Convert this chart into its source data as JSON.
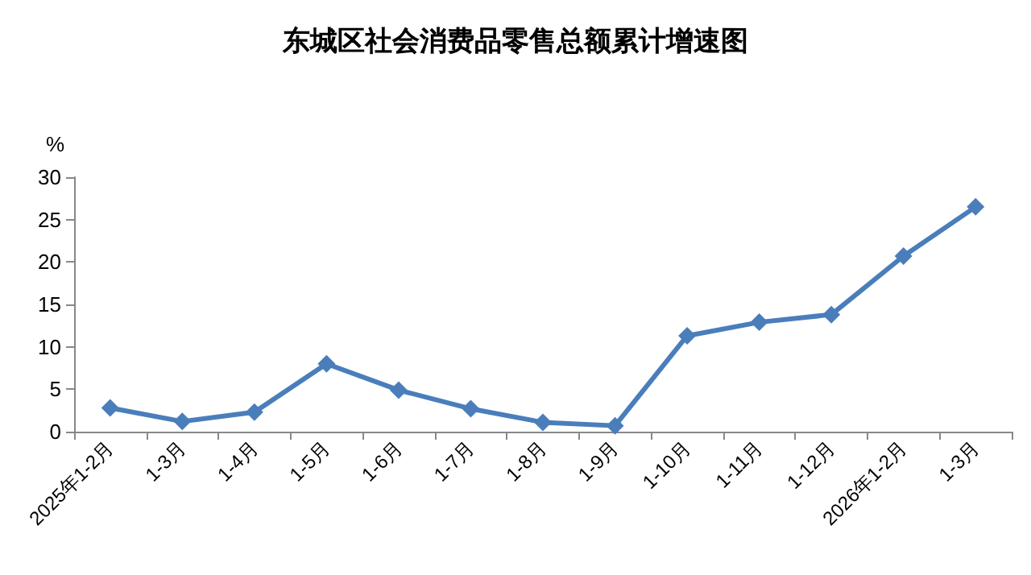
{
  "chart_data": {
    "type": "line",
    "title": "东城区社会消费品零售总额累计增速图",
    "ylabel": "%",
    "categories": [
      "2025年1-2月",
      "1-3月",
      "1-4月",
      "1-5月",
      "1-6月",
      "1-7月",
      "1-8月",
      "1-9月",
      "1-10月",
      "1-11月",
      "1-12月",
      "2026年1-2月",
      "1-3月"
    ],
    "series": [
      {
        "color": "#4a7ebb",
        "values": [
          2.8,
          1.2,
          2.3,
          8.0,
          4.9,
          2.7,
          1.1,
          0.7,
          11.3,
          12.9,
          13.8,
          20.7,
          26.5
        ]
      }
    ],
    "ylim": [
      0,
      30
    ],
    "yticks": [
      0,
      5,
      10,
      15,
      20,
      25,
      30
    ],
    "grid": false,
    "marker": "diamond",
    "line_style": "solid"
  }
}
